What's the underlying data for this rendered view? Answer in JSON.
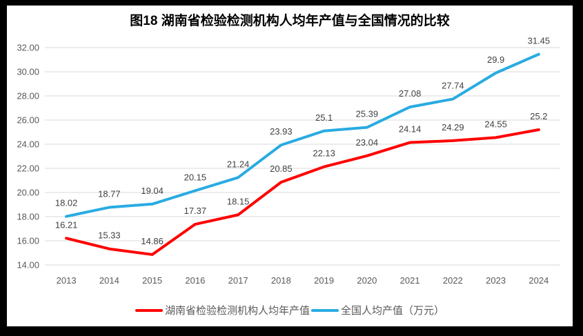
{
  "title": "图18 湖南省检验检测机构人均年产值与全国情况的比较",
  "legend": [
    {
      "label": "湖南省检验检测机构人均年产值",
      "color": "#FF0000"
    },
    {
      "label": "全国人均产值（万元）",
      "color": "#29ABE2"
    }
  ],
  "colors": {
    "frame": "#000000",
    "panel": "#FFFFFF",
    "gridline": "#D9D9D9",
    "axis_text": "#595959",
    "data_label_text": "#404040",
    "title_text": "#000000"
  },
  "chart_data": {
    "type": "line",
    "title": "图18 湖南省检验检测机构人均年产值与全国情况的比较",
    "categories": [
      "2013",
      "2014",
      "2015",
      "2016",
      "2017",
      "2018",
      "2019",
      "2020",
      "2021",
      "2022",
      "2023",
      "2024"
    ],
    "series": [
      {
        "name": "湖南省检验检测机构人均年产值",
        "color": "#FF0000",
        "values": [
          16.21,
          15.33,
          14.86,
          17.37,
          18.15,
          20.85,
          22.13,
          23.04,
          24.14,
          24.29,
          24.55,
          25.2
        ]
      },
      {
        "name": "全国人均产值（万元）",
        "color": "#29ABE2",
        "values": [
          18.02,
          18.77,
          19.04,
          20.15,
          21.24,
          23.93,
          25.1,
          25.39,
          27.08,
          27.74,
          29.9,
          31.45
        ]
      }
    ],
    "xlabel": "",
    "ylabel": "",
    "ylim": [
      14,
      32
    ],
    "ytick_step": 2,
    "ytick_decimals": 2,
    "grid": true,
    "legend_position": "bottom",
    "data_labels": true
  }
}
